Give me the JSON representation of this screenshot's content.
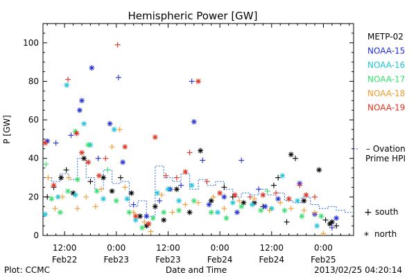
{
  "chart_data": {
    "type": "scatter",
    "title": "Hemispheric Power [GW]",
    "xlabel": "Date and Time",
    "ylabel": "P [GW]",
    "x_unit": "hours from 2013-02-22 00:00 UTC",
    "xlim": [
      7.0,
      79.0
    ],
    "ylim": [
      0,
      110
    ],
    "yticks": [
      0,
      20,
      40,
      60,
      80,
      100
    ],
    "xticks": [
      {
        "t": 12,
        "time": "12:00",
        "date": "Feb22"
      },
      {
        "t": 24,
        "time": "0:00",
        "date": "Feb23"
      },
      {
        "t": 36,
        "time": "12:00",
        "date": "Feb23"
      },
      {
        "t": 48,
        "time": "0:00",
        "date": "Feb24"
      },
      {
        "t": 60,
        "time": "12:00",
        "date": "Feb24"
      },
      {
        "t": 72,
        "time": "0:00",
        "date": "Feb25"
      }
    ],
    "grid": false,
    "legend_position": "right",
    "symbols": [
      {
        "glyph": "+",
        "label": "south"
      },
      {
        "glyph": "*",
        "label": "north"
      }
    ],
    "ovation": {
      "label_line1": "– Ovation",
      "label_line2": "Prime HPI",
      "color": "#1c5fd6",
      "step_x": [
        7,
        9,
        11,
        13,
        15,
        17,
        19,
        21,
        23,
        25,
        27,
        29,
        31,
        33,
        35,
        37,
        39,
        41,
        43,
        45,
        47,
        49,
        51,
        53,
        55,
        57,
        59,
        61,
        63,
        65,
        67,
        69,
        71,
        73,
        75,
        77
      ],
      "step_y": [
        30,
        28,
        32,
        29,
        40,
        30,
        24,
        34,
        27,
        28,
        15,
        18,
        10,
        36,
        30,
        28,
        32,
        24,
        29,
        26,
        28,
        24,
        20,
        22,
        21,
        24,
        21,
        22,
        18,
        17,
        20,
        16,
        14,
        15,
        13,
        12
      ]
    },
    "series": [
      {
        "name": "METP-02",
        "color": "#000000",
        "points": [
          [
            8.0,
            20,
            "+"
          ],
          [
            9.5,
            25,
            "+"
          ],
          [
            11.2,
            30,
            "*"
          ],
          [
            12.4,
            34,
            "+"
          ],
          [
            14.0,
            22,
            "*"
          ],
          [
            16.5,
            40,
            "*"
          ],
          [
            18.0,
            28,
            "+"
          ],
          [
            21.0,
            30,
            "*"
          ],
          [
            23.0,
            23,
            "*"
          ],
          [
            25.0,
            30,
            "+"
          ],
          [
            27.5,
            22,
            "*"
          ],
          [
            29.5,
            10,
            "*"
          ],
          [
            31.0,
            5,
            "*"
          ],
          [
            33.0,
            15,
            "*"
          ],
          [
            35.0,
            8,
            "*"
          ],
          [
            38.0,
            24,
            "*"
          ],
          [
            41.0,
            12,
            "*"
          ],
          [
            43.5,
            44,
            "*"
          ],
          [
            46.0,
            18,
            "*"
          ],
          [
            49.0,
            25,
            "+"
          ],
          [
            51.0,
            20,
            "+"
          ],
          [
            53.5,
            17,
            "*"
          ],
          [
            56.0,
            17,
            "*"
          ],
          [
            58.0,
            15,
            "+"
          ],
          [
            60.5,
            26,
            "+"
          ],
          [
            61.5,
            30,
            "+"
          ],
          [
            63.5,
            7,
            "+"
          ],
          [
            64.5,
            42,
            "*"
          ],
          [
            65.5,
            40,
            "+"
          ],
          [
            67.5,
            18,
            "*"
          ],
          [
            71.0,
            34,
            "*"
          ],
          [
            72.5,
            8,
            "+"
          ],
          [
            74.0,
            7,
            "*"
          ],
          [
            75.0,
            5,
            "+"
          ],
          [
            73.5,
            6,
            "*"
          ]
        ]
      },
      {
        "name": "NOAA-15",
        "color": "#1f2bd6",
        "points": [
          [
            8.0,
            49,
            "*"
          ],
          [
            10.0,
            48,
            "+"
          ],
          [
            13.5,
            52,
            "+"
          ],
          [
            15.5,
            65,
            "*"
          ],
          [
            16.0,
            70,
            "*"
          ],
          [
            18.3,
            87,
            "*"
          ],
          [
            19.8,
            40,
            "+"
          ],
          [
            22.5,
            58,
            "*"
          ],
          [
            24.5,
            82,
            "+"
          ],
          [
            25.5,
            38,
            "*"
          ],
          [
            28.0,
            16,
            "+"
          ],
          [
            31.0,
            10,
            "*"
          ],
          [
            34.0,
            18,
            "+"
          ],
          [
            36.5,
            24,
            "*"
          ],
          [
            39.0,
            26,
            "+"
          ],
          [
            41.5,
            80,
            "+"
          ],
          [
            42.0,
            59,
            "*"
          ],
          [
            44.0,
            39,
            "+"
          ],
          [
            45.5,
            16,
            "*"
          ],
          [
            49.0,
            20,
            "*"
          ],
          [
            52.0,
            12,
            "*"
          ],
          [
            53.0,
            39,
            "+"
          ],
          [
            57.0,
            24,
            "+"
          ],
          [
            58.5,
            15,
            "*"
          ],
          [
            61.5,
            19,
            "*"
          ],
          [
            66.5,
            27,
            "*"
          ],
          [
            70.0,
            11,
            "*"
          ],
          [
            75.0,
            9,
            "*"
          ],
          [
            74.0,
            4,
            "+"
          ]
        ]
      },
      {
        "name": "NOAA-16",
        "color": "#19c4d8",
        "points": [
          [
            7.5,
            11,
            "*"
          ],
          [
            10.5,
            20,
            "*"
          ],
          [
            12.5,
            78,
            "*"
          ],
          [
            14.5,
            21,
            "*"
          ],
          [
            16.5,
            58,
            "*"
          ],
          [
            18.0,
            47,
            "*"
          ],
          [
            21.0,
            19,
            "*"
          ],
          [
            23.5,
            55,
            "*"
          ],
          [
            26.5,
            19,
            "*"
          ],
          [
            28.5,
            8,
            "*"
          ],
          [
            33.5,
            22,
            "*"
          ],
          [
            36.0,
            24,
            "*"
          ],
          [
            38.5,
            18,
            "*"
          ],
          [
            41.5,
            26,
            "*"
          ],
          [
            47.5,
            12,
            "*"
          ],
          [
            51.0,
            17,
            "*"
          ],
          [
            55.5,
            16,
            "*"
          ],
          [
            60.0,
            14,
            "*"
          ],
          [
            62.5,
            31,
            "*"
          ],
          [
            66.0,
            18,
            "*"
          ],
          [
            70.5,
            5,
            "*"
          ]
        ]
      },
      {
        "name": "NOAA-17",
        "color": "#33e06a",
        "points": [
          [
            7.7,
            37,
            "+"
          ],
          [
            9.0,
            19,
            "*"
          ],
          [
            11.0,
            12,
            "*"
          ],
          [
            12.8,
            23,
            "*"
          ],
          [
            14.5,
            54,
            "*"
          ],
          [
            15.0,
            29,
            "*"
          ],
          [
            17.5,
            47,
            "*"
          ],
          [
            19.5,
            23,
            "*"
          ],
          [
            22.0,
            34,
            "+"
          ],
          [
            24.0,
            18,
            "*"
          ],
          [
            27.0,
            12,
            "*"
          ],
          [
            30.0,
            4,
            "*"
          ],
          [
            32.5,
            9,
            "*"
          ],
          [
            35.0,
            12,
            "*"
          ],
          [
            38.5,
            13,
            "*"
          ],
          [
            42.0,
            18,
            "*"
          ],
          [
            46.0,
            12,
            "*"
          ],
          [
            49.5,
            9,
            "*"
          ],
          [
            53.0,
            15,
            "*"
          ],
          [
            57.5,
            13,
            "*"
          ],
          [
            59.0,
            23,
            "+"
          ],
          [
            63.0,
            13,
            "*"
          ],
          [
            67.0,
            10,
            "*"
          ],
          [
            71.5,
            10,
            "*"
          ]
        ]
      },
      {
        "name": "NOAA-18",
        "color": "#f39a2a",
        "points": [
          [
            8.2,
            30,
            "+"
          ],
          [
            9.8,
            14,
            "+"
          ],
          [
            11.5,
            20,
            "+"
          ],
          [
            13.0,
            30,
            "+"
          ],
          [
            15.0,
            14,
            "+"
          ],
          [
            17.0,
            20,
            "+"
          ],
          [
            19.2,
            15,
            "+"
          ],
          [
            20.5,
            24,
            "+"
          ],
          [
            23.0,
            46,
            "+"
          ],
          [
            24.8,
            55,
            "+"
          ],
          [
            26.0,
            25,
            "+"
          ],
          [
            28.0,
            12,
            "+"
          ],
          [
            30.5,
            7,
            "+"
          ],
          [
            32.0,
            2,
            "+"
          ],
          [
            34.5,
            21,
            "+"
          ],
          [
            37.0,
            12,
            "+"
          ],
          [
            40.0,
            16,
            "+"
          ],
          [
            43.0,
            17,
            "+"
          ],
          [
            46.5,
            20,
            "+"
          ],
          [
            49.0,
            14,
            "+"
          ],
          [
            52.5,
            18,
            "+"
          ],
          [
            56.0,
            19,
            "+"
          ],
          [
            59.5,
            13,
            "+"
          ],
          [
            62.0,
            17,
            "+"
          ],
          [
            64.5,
            14,
            "+"
          ],
          [
            67.5,
            13,
            "+"
          ],
          [
            70.0,
            12,
            "+"
          ],
          [
            72.0,
            1,
            "+"
          ]
        ]
      },
      {
        "name": "NOAA-19",
        "color": "#e0301d",
        "points": [
          [
            7.5,
            48,
            "*"
          ],
          [
            9.5,
            26,
            "*"
          ],
          [
            12.8,
            81,
            "+"
          ],
          [
            14.8,
            53,
            "*"
          ],
          [
            16.0,
            43,
            "*"
          ],
          [
            17.5,
            38,
            "*"
          ],
          [
            20.0,
            31,
            "*"
          ],
          [
            21.5,
            40,
            "+"
          ],
          [
            24.3,
            99,
            "+"
          ],
          [
            26.0,
            46,
            "*"
          ],
          [
            28.5,
            10,
            "*"
          ],
          [
            31.5,
            6,
            "*"
          ],
          [
            33.0,
            51,
            "*"
          ],
          [
            35.5,
            31,
            "+"
          ],
          [
            38.0,
            30,
            "+"
          ],
          [
            40.0,
            33,
            "*"
          ],
          [
            41.0,
            43,
            "+"
          ],
          [
            43.0,
            80,
            "*"
          ],
          [
            45.0,
            28,
            "+"
          ],
          [
            48.0,
            22,
            "*"
          ],
          [
            51.5,
            21,
            "*"
          ],
          [
            55.0,
            20,
            "+"
          ],
          [
            58.0,
            21,
            "*"
          ],
          [
            61.0,
            22,
            "+"
          ],
          [
            64.0,
            19,
            "*"
          ],
          [
            66.5,
            26,
            "+"
          ],
          [
            68.0,
            21,
            "*"
          ],
          [
            70.0,
            20,
            "+"
          ]
        ]
      }
    ]
  },
  "footer": {
    "plot_credit": "Plot: CCMC",
    "timestamp": "2013/02/25 04:20:14"
  }
}
